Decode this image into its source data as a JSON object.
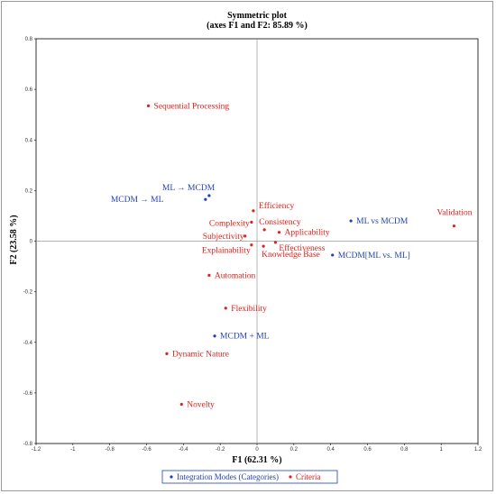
{
  "chart_data": {
    "type": "scatter",
    "title": "Symmetric plot",
    "subtitle": "(axes F1 and F2: 85.89 %)",
    "xlabel": "F1 (62.31 %)",
    "ylabel": "F2 (23.58 %)",
    "xlim": [
      -1.2,
      1.2
    ],
    "ylim": [
      -0.8,
      0.8
    ],
    "xticks": [
      "-1.2",
      "-1",
      "-0.8",
      "-0.6",
      "-0.4",
      "-0.2",
      "0",
      "0.2",
      "0.4",
      "0.6",
      "0.8",
      "1",
      "1.2"
    ],
    "yticks": [
      "-0.8",
      "-0.6",
      "-0.4",
      "-0.2",
      "0",
      "0.2",
      "0.4",
      "0.6",
      "0.8"
    ],
    "grid": false,
    "legend_position": "bottom",
    "series": [
      {
        "name": "Integration Modes (Categories)",
        "color": "#1f3fbf",
        "points": [
          {
            "label": "ML → MCDM",
            "x": -0.26,
            "y": 0.18
          },
          {
            "label": "MCDM → ML",
            "x": -0.28,
            "y": 0.165
          },
          {
            "label": "ML vs MCDM",
            "x": 0.51,
            "y": 0.08
          },
          {
            "label": "MCDM[ML vs. ML]",
            "x": 0.41,
            "y": -0.055
          },
          {
            "label": "MCDM + ML",
            "x": -0.23,
            "y": -0.375
          }
        ]
      },
      {
        "name": "Criteria",
        "color": "#e0201b",
        "points": [
          {
            "label": "Sequential Processing",
            "x": -0.59,
            "y": 0.535
          },
          {
            "label": "Efficiency",
            "x": -0.02,
            "y": 0.12
          },
          {
            "label": "Complexity",
            "x": -0.03,
            "y": 0.075
          },
          {
            "label": "Consistency",
            "x": 0.04,
            "y": 0.045
          },
          {
            "label": "Applicability",
            "x": 0.12,
            "y": 0.035
          },
          {
            "label": "Subjectivity",
            "x": -0.065,
            "y": 0.02
          },
          {
            "label": "Validation",
            "x": 1.07,
            "y": 0.06
          },
          {
            "label": "Explainability",
            "x": -0.03,
            "y": -0.015
          },
          {
            "label": "Effectiveness",
            "x": 0.1,
            "y": -0.005
          },
          {
            "label": "Knowledge Base",
            "x": 0.035,
            "y": -0.02
          },
          {
            "label": "Automation",
            "x": -0.26,
            "y": -0.135
          },
          {
            "label": "Flexibility",
            "x": -0.17,
            "y": -0.265
          },
          {
            "label": "Dynamic Nature",
            "x": -0.49,
            "y": -0.445
          },
          {
            "label": "Novelty",
            "x": -0.41,
            "y": -0.645
          }
        ]
      }
    ]
  }
}
